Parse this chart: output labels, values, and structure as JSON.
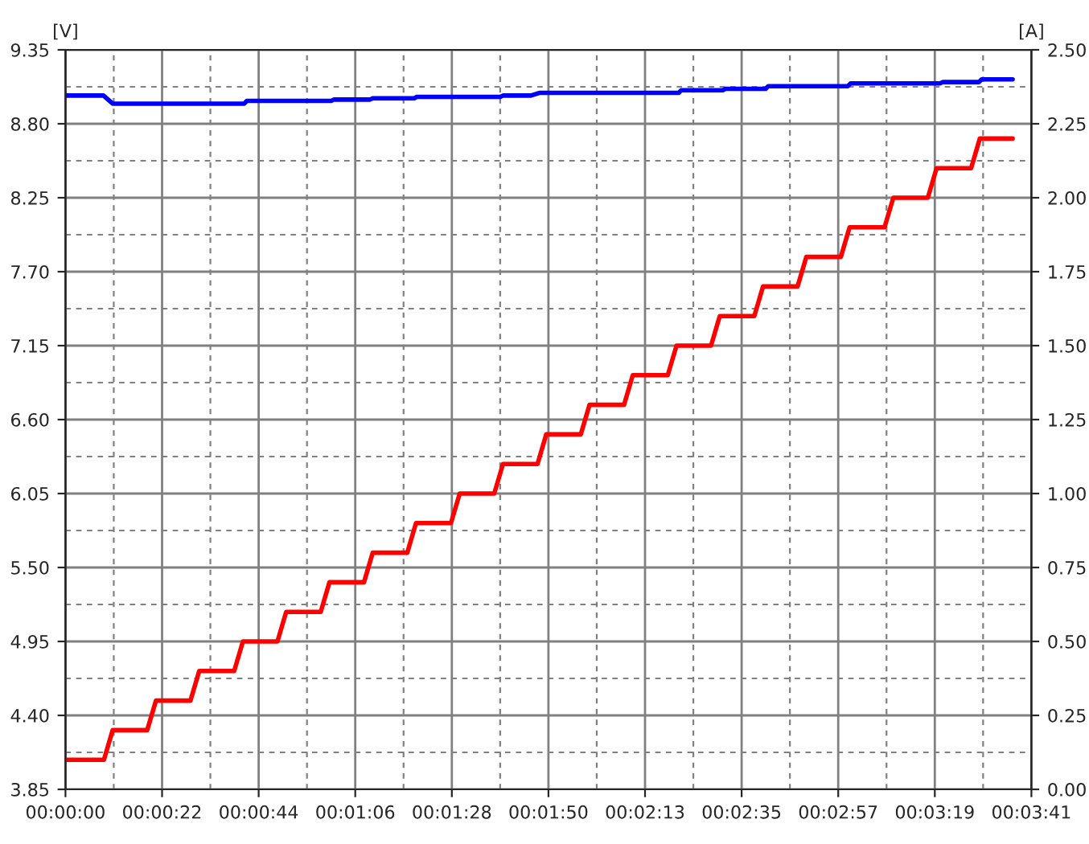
{
  "chart_data": {
    "type": "line",
    "ylabel": "[V]",
    "y2label": "[A]",
    "xlim": [
      0,
      221
    ],
    "xticks": [
      {
        "value": 0,
        "label": "00:00:00"
      },
      {
        "value": 22.1,
        "label": "00:00:22"
      },
      {
        "value": 44.2,
        "label": "00:00:44"
      },
      {
        "value": 66.3,
        "label": "00:01:06"
      },
      {
        "value": 88.4,
        "label": "00:01:28"
      },
      {
        "value": 110.5,
        "label": "00:01:50"
      },
      {
        "value": 132.6,
        "label": "00:02:13"
      },
      {
        "value": 154.7,
        "label": "00:02:35"
      },
      {
        "value": 176.8,
        "label": "00:02:57"
      },
      {
        "value": 198.9,
        "label": "00:03:19"
      },
      {
        "value": 221,
        "label": "00:03:41"
      }
    ],
    "ylim": [
      3.85,
      9.35
    ],
    "yticks": [
      {
        "value": 3.85,
        "label": "3.85"
      },
      {
        "value": 4.4,
        "label": "4.40"
      },
      {
        "value": 4.95,
        "label": "4.95"
      },
      {
        "value": 5.5,
        "label": "5.50"
      },
      {
        "value": 6.05,
        "label": "6.05"
      },
      {
        "value": 6.6,
        "label": "6.60"
      },
      {
        "value": 7.15,
        "label": "7.15"
      },
      {
        "value": 7.7,
        "label": "7.70"
      },
      {
        "value": 8.25,
        "label": "8.25"
      },
      {
        "value": 8.8,
        "label": "8.80"
      },
      {
        "value": 9.35,
        "label": "9.35"
      }
    ],
    "y2lim": [
      0,
      2.5
    ],
    "y2ticks": [
      {
        "value": 0,
        "label": "0.00"
      },
      {
        "value": 0.25,
        "label": "0.25"
      },
      {
        "value": 0.5,
        "label": "0.50"
      },
      {
        "value": 0.75,
        "label": "0.75"
      },
      {
        "value": 1,
        "label": "1.00"
      },
      {
        "value": 1.25,
        "label": "1.25"
      },
      {
        "value": 1.5,
        "label": "1.50"
      },
      {
        "value": 1.75,
        "label": "1.75"
      },
      {
        "value": 2,
        "label": "2.00"
      },
      {
        "value": 2.25,
        "label": "2.25"
      },
      {
        "value": 2.5,
        "label": "2.50"
      }
    ],
    "grid": true,
    "series": [
      {
        "color": "#0000ff",
        "x": [
          0,
          8.7,
          10.8,
          40.9,
          41.5,
          60.8,
          61.4,
          69.7,
          70.3,
          79.8,
          80.4,
          99.5,
          100.1,
          106.5,
          108.4,
          140.3,
          140.9,
          150.4,
          151,
          160.2,
          160.8,
          179,
          179.6,
          200.1,
          200.7,
          209,
          209.6,
          216.7
        ],
        "values": [
          9.01,
          9.01,
          8.95,
          8.95,
          8.97,
          8.97,
          8.98,
          8.98,
          8.99,
          8.99,
          9.0,
          9.0,
          9.01,
          9.01,
          9.03,
          9.03,
          9.05,
          9.05,
          9.06,
          9.06,
          9.08,
          9.08,
          9.1,
          9.1,
          9.11,
          9.11,
          9.13,
          9.13
        ]
      },
      {
        "color": "#ff0000",
        "axis": "y2",
        "x": [
          0,
          8.8,
          10.8,
          18.7,
          20.7,
          28.6,
          30.6,
          38.6,
          40.6,
          48.5,
          50.5,
          58.4,
          60.4,
          68.3,
          70.3,
          78.2,
          80.2,
          88.2,
          90.2,
          98.1,
          100.1,
          108.0,
          110.0,
          117.9,
          119.9,
          127.8,
          129.8,
          137.8,
          139.8,
          147.7,
          149.7,
          157.6,
          159.6,
          167.5,
          169.5,
          177.4,
          179.4,
          187.4,
          189.4,
          197.3,
          199.3,
          207.2,
          209.2,
          216.7
        ],
        "values": [
          0.1,
          0.1,
          0.2,
          0.2,
          0.3,
          0.3,
          0.4,
          0.4,
          0.5,
          0.5,
          0.6,
          0.6,
          0.7,
          0.7,
          0.8,
          0.8,
          0.9,
          0.9,
          1.0,
          1.0,
          1.1,
          1.1,
          1.2,
          1.2,
          1.3,
          1.3,
          1.4,
          1.4,
          1.5,
          1.5,
          1.6,
          1.6,
          1.7,
          1.7,
          1.8,
          1.8,
          1.9,
          1.9,
          2.0,
          2.0,
          2.1,
          2.1,
          2.2,
          2.2
        ]
      }
    ]
  }
}
